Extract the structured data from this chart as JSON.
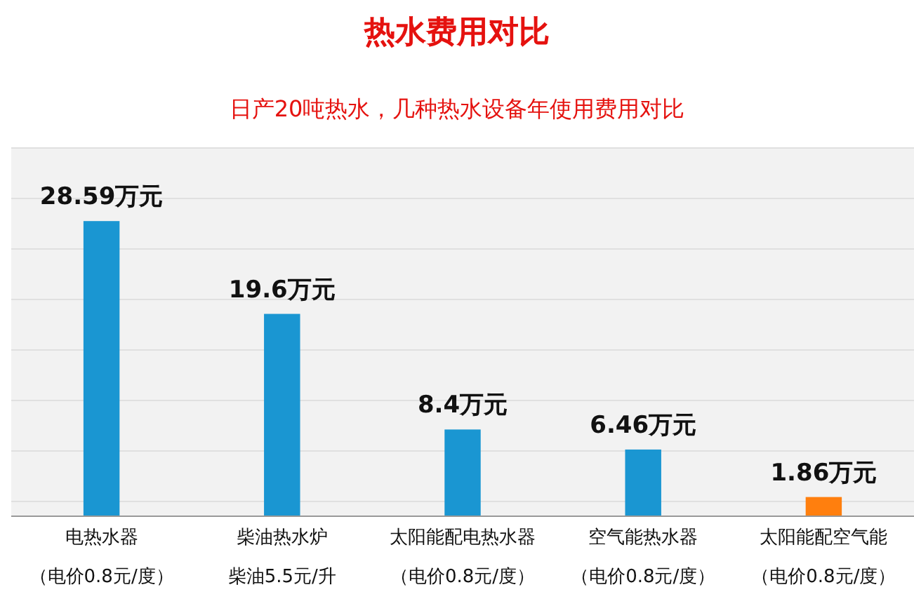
{
  "chart_data": {
    "type": "bar",
    "title": "热水费用对比",
    "subtitle": "日产20吨热水，几种热水设备年使用费用对比",
    "categories": [
      "电热水器",
      "柴油热水炉",
      "太阳能配电热水器",
      "空气能热水器",
      "太阳能配空气能"
    ],
    "values": [
      28.59,
      19.6,
      8.4,
      6.46,
      1.86
    ],
    "colors": [
      "#1a96d2",
      "#1a96d2",
      "#1a96d2",
      "#1a96d2",
      "#ff7f0e"
    ],
    "value_labels": [
      "28.59万元",
      "19.6万元",
      "8.4万元",
      "6.46万元",
      "1.86万元"
    ],
    "annotations": [
      "（电价0.8元/度）",
      "柴油5.5元/升",
      "（电价0.8元/度）",
      "（电价0.8元/度）",
      "（电价0.8元/度）"
    ]
  }
}
